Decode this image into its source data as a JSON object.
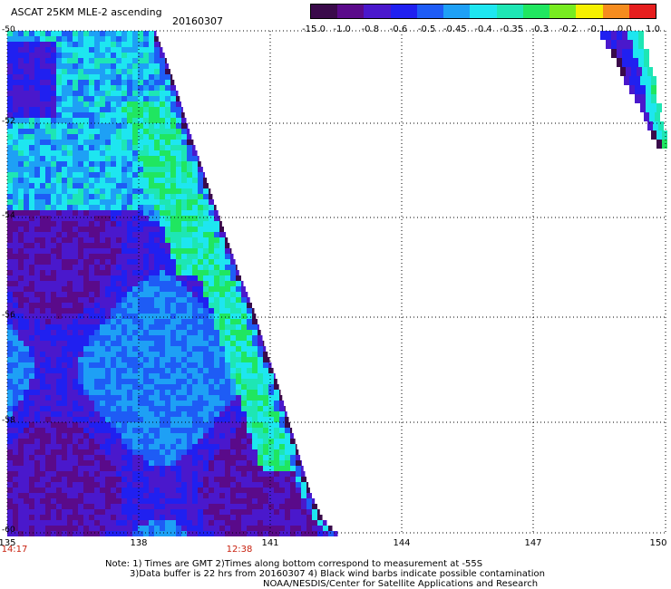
{
  "header": {
    "title": "ASCAT 25KM MLE-2 ascending",
    "date": "20160307"
  },
  "colorbar": {
    "labels": [
      "-15.0",
      "-1.0",
      "-0.8",
      "-0.6",
      "-0.5",
      "-0.45",
      "-0.4",
      "-0.35",
      "-0.3",
      "-0.2",
      "-0.1",
      "0.0",
      "1.0"
    ],
    "colors": [
      "#3a0a4a",
      "#5a0a8a",
      "#4a18cc",
      "#2020f0",
      "#1e5cf5",
      "#1ea0f5",
      "#1ee6f0",
      "#1ee6b4",
      "#20e660",
      "#78ec20",
      "#f5f000",
      "#f58c1e",
      "#e61e1e"
    ]
  },
  "map": {
    "lat_labels": [
      "-50",
      "-52",
      "-54",
      "-56",
      "-58",
      "-60"
    ],
    "lon_labels": [
      "135",
      "138",
      "141",
      "144",
      "147",
      "150"
    ],
    "lon_range": [
      135,
      150
    ],
    "lat_range": [
      -60,
      -50
    ],
    "time_labels": [
      "14:17",
      "12:38"
    ]
  },
  "notes": {
    "line1": "Note: 1) Times are GMT 2)Times along bottom correspond to measurement at -55S",
    "line2": "3)Data buffer is 22 hrs from 20160307 4) Black wind barbs indicate possible contamination",
    "line3": "NOAA/NESDIS/Center for Satellite Applications and Research"
  }
}
